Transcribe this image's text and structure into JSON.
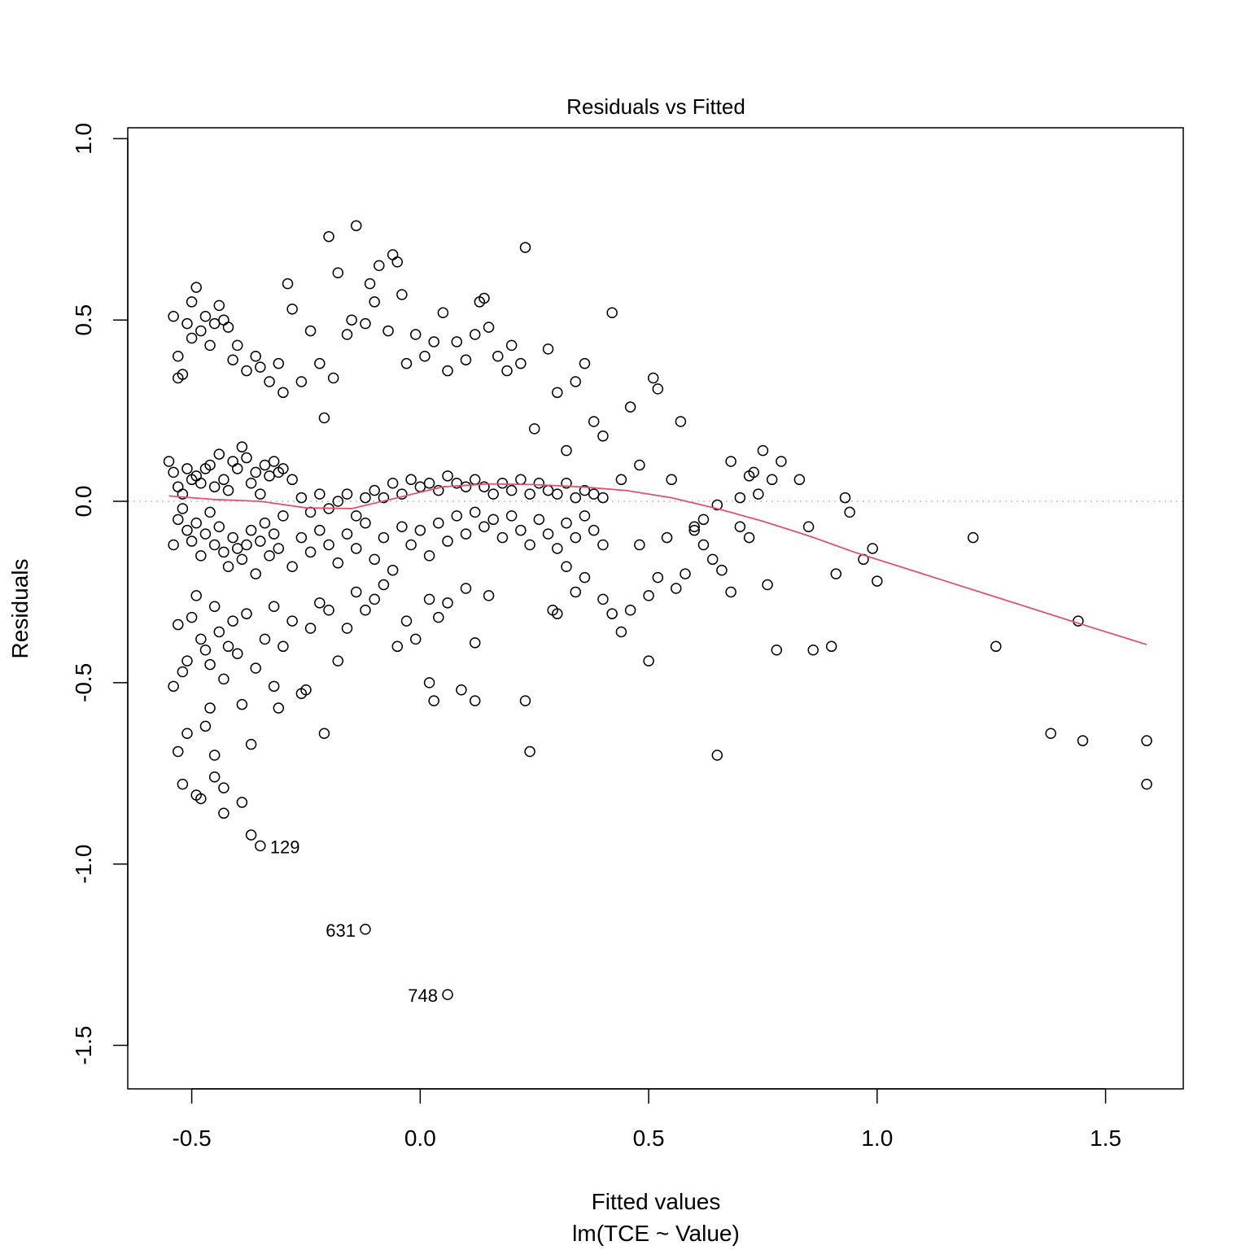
{
  "chart_data": {
    "type": "scatter",
    "title": "Residuals vs Fitted",
    "xlabel": "Fitted values",
    "subtitle": "lm(TCE ~ Value)",
    "ylabel": "Residuals",
    "xlim": [
      -0.64,
      1.67
    ],
    "ylim": [
      -1.62,
      1.03
    ],
    "xticks": [
      -0.5,
      0.0,
      0.5,
      1.0,
      1.5
    ],
    "xtick_labels": [
      "-0.5",
      "0.0",
      "0.5",
      "1.0",
      "1.5"
    ],
    "yticks": [
      -1.5,
      -1.0,
      -0.5,
      0.0,
      0.5,
      1.0
    ],
    "ytick_labels": [
      "-1.5",
      "-1.0",
      "-0.5",
      "0.0",
      "0.5",
      "1.0"
    ],
    "reference_line": {
      "y": 0,
      "style": "dotted",
      "color": "#bebebe"
    },
    "point_color": "#000000",
    "smooth_color": "#df536b",
    "points": [
      [
        -0.55,
        0.11
      ],
      [
        -0.54,
        0.51
      ],
      [
        -0.53,
        0.4
      ],
      [
        -0.53,
        0.34
      ],
      [
        -0.52,
        0.35
      ],
      [
        -0.51,
        0.49
      ],
      [
        -0.5,
        0.55
      ],
      [
        -0.5,
        0.45
      ],
      [
        -0.49,
        0.59
      ],
      [
        -0.48,
        0.47
      ],
      [
        -0.47,
        0.51
      ],
      [
        -0.46,
        0.43
      ],
      [
        -0.45,
        0.49
      ],
      [
        -0.44,
        0.54
      ],
      [
        -0.43,
        0.5
      ],
      [
        -0.42,
        0.48
      ],
      [
        -0.41,
        0.39
      ],
      [
        -0.4,
        0.43
      ],
      [
        -0.38,
        0.36
      ],
      [
        -0.36,
        0.4
      ],
      [
        -0.35,
        0.37
      ],
      [
        -0.33,
        0.33
      ],
      [
        -0.31,
        0.38
      ],
      [
        -0.3,
        0.3
      ],
      [
        -0.29,
        0.6
      ],
      [
        -0.28,
        0.53
      ],
      [
        -0.26,
        0.33
      ],
      [
        -0.24,
        0.47
      ],
      [
        -0.22,
        0.38
      ],
      [
        -0.21,
        0.23
      ],
      [
        -0.2,
        0.73
      ],
      [
        -0.19,
        0.34
      ],
      [
        -0.18,
        0.63
      ],
      [
        -0.16,
        0.46
      ],
      [
        -0.15,
        0.5
      ],
      [
        -0.14,
        0.76
      ],
      [
        -0.12,
        0.49
      ],
      [
        -0.11,
        0.6
      ],
      [
        -0.1,
        0.55
      ],
      [
        -0.09,
        0.65
      ],
      [
        -0.07,
        0.47
      ],
      [
        -0.06,
        0.68
      ],
      [
        -0.05,
        0.66
      ],
      [
        -0.04,
        0.57
      ],
      [
        -0.03,
        0.38
      ],
      [
        -0.01,
        0.46
      ],
      [
        0.01,
        0.4
      ],
      [
        0.03,
        0.44
      ],
      [
        0.05,
        0.52
      ],
      [
        0.06,
        0.36
      ],
      [
        0.08,
        0.44
      ],
      [
        0.1,
        0.39
      ],
      [
        0.12,
        0.46
      ],
      [
        0.13,
        0.55
      ],
      [
        0.14,
        0.56
      ],
      [
        0.15,
        0.48
      ],
      [
        0.17,
        0.4
      ],
      [
        0.19,
        0.36
      ],
      [
        0.2,
        0.43
      ],
      [
        0.22,
        0.38
      ],
      [
        0.23,
        0.7
      ],
      [
        0.25,
        0.2
      ],
      [
        0.28,
        0.42
      ],
      [
        0.3,
        0.3
      ],
      [
        0.32,
        0.14
      ],
      [
        0.34,
        0.33
      ],
      [
        0.36,
        0.38
      ],
      [
        0.38,
        0.22
      ],
      [
        0.4,
        0.18
      ],
      [
        0.42,
        0.52
      ],
      [
        0.44,
        0.06
      ],
      [
        0.46,
        0.26
      ],
      [
        0.48,
        0.1
      ],
      [
        0.51,
        0.34
      ],
      [
        0.52,
        0.31
      ],
      [
        0.55,
        0.06
      ],
      [
        0.57,
        0.22
      ],
      [
        0.6,
        -0.07
      ],
      [
        0.62,
        -0.05
      ],
      [
        0.65,
        -0.01
      ],
      [
        -0.54,
        0.08
      ],
      [
        -0.53,
        0.04
      ],
      [
        -0.52,
        0.02
      ],
      [
        -0.51,
        0.09
      ],
      [
        -0.5,
        0.06
      ],
      [
        -0.49,
        0.07
      ],
      [
        -0.48,
        0.05
      ],
      [
        -0.47,
        0.09
      ],
      [
        -0.46,
        0.1
      ],
      [
        -0.45,
        0.04
      ],
      [
        -0.44,
        0.13
      ],
      [
        -0.43,
        0.06
      ],
      [
        -0.42,
        0.03
      ],
      [
        -0.41,
        0.11
      ],
      [
        -0.4,
        0.09
      ],
      [
        -0.39,
        0.15
      ],
      [
        -0.38,
        0.12
      ],
      [
        -0.37,
        0.05
      ],
      [
        -0.36,
        0.08
      ],
      [
        -0.35,
        0.02
      ],
      [
        -0.34,
        0.1
      ],
      [
        -0.33,
        0.07
      ],
      [
        -0.32,
        0.11
      ],
      [
        -0.31,
        0.08
      ],
      [
        -0.3,
        0.09
      ],
      [
        -0.28,
        0.06
      ],
      [
        -0.26,
        0.01
      ],
      [
        -0.24,
        -0.03
      ],
      [
        -0.22,
        0.02
      ],
      [
        -0.2,
        -0.02
      ],
      [
        -0.18,
        0.0
      ],
      [
        -0.16,
        0.02
      ],
      [
        -0.14,
        -0.04
      ],
      [
        -0.12,
        0.01
      ],
      [
        -0.1,
        0.03
      ],
      [
        -0.08,
        0.01
      ],
      [
        -0.06,
        0.05
      ],
      [
        -0.04,
        0.02
      ],
      [
        -0.02,
        0.06
      ],
      [
        0.0,
        0.04
      ],
      [
        0.02,
        0.05
      ],
      [
        0.04,
        0.03
      ],
      [
        0.06,
        0.07
      ],
      [
        0.08,
        0.05
      ],
      [
        0.1,
        0.04
      ],
      [
        0.12,
        0.06
      ],
      [
        0.14,
        0.04
      ],
      [
        0.16,
        0.02
      ],
      [
        0.18,
        0.05
      ],
      [
        0.2,
        0.03
      ],
      [
        0.22,
        0.06
      ],
      [
        0.24,
        0.02
      ],
      [
        0.26,
        0.05
      ],
      [
        0.28,
        0.03
      ],
      [
        0.3,
        0.02
      ],
      [
        0.32,
        0.05
      ],
      [
        0.34,
        0.01
      ],
      [
        0.36,
        0.03
      ],
      [
        0.38,
        0.02
      ],
      [
        0.4,
        0.01
      ],
      [
        -0.54,
        -0.12
      ],
      [
        -0.53,
        -0.05
      ],
      [
        -0.52,
        -0.02
      ],
      [
        -0.51,
        -0.08
      ],
      [
        -0.5,
        -0.11
      ],
      [
        -0.49,
        -0.06
      ],
      [
        -0.48,
        -0.15
      ],
      [
        -0.47,
        -0.09
      ],
      [
        -0.46,
        -0.03
      ],
      [
        -0.45,
        -0.12
      ],
      [
        -0.44,
        -0.07
      ],
      [
        -0.43,
        -0.14
      ],
      [
        -0.42,
        -0.18
      ],
      [
        -0.41,
        -0.1
      ],
      [
        -0.4,
        -0.13
      ],
      [
        -0.39,
        -0.16
      ],
      [
        -0.38,
        -0.12
      ],
      [
        -0.37,
        -0.08
      ],
      [
        -0.36,
        -0.2
      ],
      [
        -0.35,
        -0.11
      ],
      [
        -0.34,
        -0.06
      ],
      [
        -0.33,
        -0.15
      ],
      [
        -0.32,
        -0.09
      ],
      [
        -0.31,
        -0.13
      ],
      [
        -0.3,
        -0.04
      ],
      [
        -0.28,
        -0.18
      ],
      [
        -0.26,
        -0.1
      ],
      [
        -0.24,
        -0.14
      ],
      [
        -0.22,
        -0.08
      ],
      [
        -0.2,
        -0.12
      ],
      [
        -0.18,
        -0.17
      ],
      [
        -0.16,
        -0.09
      ],
      [
        -0.14,
        -0.13
      ],
      [
        -0.12,
        -0.06
      ],
      [
        -0.1,
        -0.16
      ],
      [
        -0.08,
        -0.1
      ],
      [
        -0.06,
        -0.19
      ],
      [
        -0.04,
        -0.07
      ],
      [
        -0.02,
        -0.12
      ],
      [
        0.0,
        -0.08
      ],
      [
        0.02,
        -0.15
      ],
      [
        0.04,
        -0.06
      ],
      [
        0.06,
        -0.11
      ],
      [
        0.08,
        -0.04
      ],
      [
        0.1,
        -0.09
      ],
      [
        0.12,
        -0.03
      ],
      [
        0.14,
        -0.07
      ],
      [
        0.16,
        -0.05
      ],
      [
        0.18,
        -0.1
      ],
      [
        0.2,
        -0.04
      ],
      [
        0.22,
        -0.08
      ],
      [
        0.24,
        -0.12
      ],
      [
        0.26,
        -0.05
      ],
      [
        0.28,
        -0.09
      ],
      [
        0.3,
        -0.13
      ],
      [
        0.32,
        -0.06
      ],
      [
        0.34,
        -0.1
      ],
      [
        0.36,
        -0.04
      ],
      [
        0.38,
        -0.08
      ],
      [
        0.4,
        -0.12
      ],
      [
        -0.53,
        -0.34
      ],
      [
        -0.52,
        -0.47
      ],
      [
        -0.51,
        -0.44
      ],
      [
        -0.5,
        -0.32
      ],
      [
        -0.49,
        -0.26
      ],
      [
        -0.48,
        -0.38
      ],
      [
        -0.47,
        -0.41
      ],
      [
        -0.46,
        -0.45
      ],
      [
        -0.45,
        -0.29
      ],
      [
        -0.44,
        -0.36
      ],
      [
        -0.43,
        -0.49
      ],
      [
        -0.42,
        -0.4
      ],
      [
        -0.41,
        -0.33
      ],
      [
        -0.4,
        -0.42
      ],
      [
        -0.38,
        -0.31
      ],
      [
        -0.36,
        -0.46
      ],
      [
        -0.34,
        -0.38
      ],
      [
        -0.32,
        -0.29
      ],
      [
        -0.3,
        -0.4
      ],
      [
        -0.28,
        -0.33
      ],
      [
        -0.26,
        -0.53
      ],
      [
        -0.25,
        -0.52
      ],
      [
        -0.24,
        -0.35
      ],
      [
        -0.22,
        -0.28
      ],
      [
        -0.2,
        -0.3
      ],
      [
        -0.18,
        -0.44
      ],
      [
        -0.16,
        -0.35
      ],
      [
        -0.14,
        -0.25
      ],
      [
        -0.12,
        -0.3
      ],
      [
        -0.1,
        -0.27
      ],
      [
        -0.08,
        -0.23
      ],
      [
        -0.05,
        -0.4
      ],
      [
        -0.03,
        -0.33
      ],
      [
        -0.01,
        -0.38
      ],
      [
        0.02,
        -0.27
      ],
      [
        0.04,
        -0.32
      ],
      [
        0.06,
        -0.28
      ],
      [
        0.1,
        -0.24
      ],
      [
        0.12,
        -0.39
      ],
      [
        0.15,
        -0.26
      ],
      [
        -0.54,
        -0.51
      ],
      [
        -0.53,
        -0.69
      ],
      [
        -0.52,
        -0.78
      ],
      [
        -0.51,
        -0.64
      ],
      [
        -0.49,
        -0.81
      ],
      [
        -0.48,
        -0.82
      ],
      [
        -0.47,
        -0.62
      ],
      [
        -0.46,
        -0.57
      ],
      [
        -0.45,
        -0.7
      ],
      [
        -0.45,
        -0.76
      ],
      [
        -0.43,
        -0.79
      ],
      [
        -0.43,
        -0.86
      ],
      [
        -0.39,
        -0.56
      ],
      [
        -0.39,
        -0.83
      ],
      [
        -0.37,
        -0.92
      ],
      [
        -0.37,
        -0.67
      ],
      [
        -0.32,
        -0.51
      ],
      [
        -0.31,
        -0.57
      ],
      [
        -0.21,
        -0.64
      ],
      [
        0.02,
        -0.5
      ],
      [
        0.03,
        -0.55
      ],
      [
        0.09,
        -0.52
      ],
      [
        0.12,
        -0.55
      ],
      [
        0.23,
        -0.55
      ],
      [
        0.24,
        -0.69
      ],
      [
        0.29,
        -0.3
      ],
      [
        0.3,
        -0.31
      ],
      [
        0.32,
        -0.18
      ],
      [
        0.34,
        -0.25
      ],
      [
        0.36,
        -0.21
      ],
      [
        0.4,
        -0.27
      ],
      [
        0.42,
        -0.31
      ],
      [
        0.44,
        -0.36
      ],
      [
        0.46,
        -0.3
      ],
      [
        0.48,
        -0.12
      ],
      [
        0.5,
        -0.26
      ],
      [
        0.5,
        -0.44
      ],
      [
        0.52,
        -0.21
      ],
      [
        0.54,
        -0.1
      ],
      [
        0.56,
        -0.24
      ],
      [
        0.58,
        -0.2
      ],
      [
        0.6,
        -0.08
      ],
      [
        0.62,
        -0.12
      ],
      [
        0.64,
        -0.16
      ],
      [
        0.66,
        -0.19
      ],
      [
        0.68,
        -0.25
      ],
      [
        0.7,
        -0.07
      ],
      [
        0.72,
        -0.1
      ],
      [
        0.74,
        0.02
      ],
      [
        0.76,
        -0.23
      ],
      [
        0.68,
        0.11
      ],
      [
        0.7,
        0.01
      ],
      [
        0.72,
        0.07
      ],
      [
        0.73,
        0.08
      ],
      [
        0.75,
        0.14
      ],
      [
        0.77,
        0.06
      ],
      [
        0.79,
        0.11
      ],
      [
        0.83,
        0.06
      ],
      [
        0.85,
        -0.07
      ],
      [
        0.78,
        -0.41
      ],
      [
        0.86,
        -0.41
      ],
      [
        0.9,
        -0.4
      ],
      [
        0.93,
        0.01
      ],
      [
        0.94,
        -0.03
      ],
      [
        0.91,
        -0.2
      ],
      [
        0.97,
        -0.16
      ],
      [
        0.99,
        -0.13
      ],
      [
        1.0,
        -0.22
      ],
      [
        1.21,
        -0.1
      ],
      [
        1.26,
        -0.4
      ],
      [
        1.38,
        -0.64
      ],
      [
        1.44,
        -0.33
      ],
      [
        1.45,
        -0.66
      ],
      [
        1.59,
        -0.66
      ],
      [
        1.59,
        -0.78
      ],
      [
        0.65,
        -0.7
      ],
      [
        -0.35,
        -0.95
      ],
      [
        -0.12,
        -1.18
      ],
      [
        0.06,
        -1.36
      ]
    ],
    "smooth_line": {
      "x": [
        -0.55,
        -0.45,
        -0.35,
        -0.25,
        -0.15,
        -0.05,
        0.05,
        0.15,
        0.25,
        0.35,
        0.45,
        0.55,
        0.65,
        0.75,
        0.85,
        0.95,
        1.05,
        1.15,
        1.25,
        1.35,
        1.45,
        1.59
      ],
      "y": [
        0.015,
        0.005,
        0.0,
        -0.018,
        -0.02,
        0.01,
        0.04,
        0.048,
        0.046,
        0.04,
        0.03,
        0.01,
        -0.02,
        -0.055,
        -0.095,
        -0.14,
        -0.18,
        -0.22,
        -0.26,
        -0.3,
        -0.34,
        -0.395
      ]
    },
    "annotations": [
      {
        "text": "129",
        "x": -0.35,
        "y": -0.95,
        "anchor": "right-of"
      },
      {
        "text": "631",
        "x": -0.12,
        "y": -1.18,
        "anchor": "left-of"
      },
      {
        "text": "748",
        "x": 0.06,
        "y": -1.36,
        "anchor": "left-of"
      }
    ]
  }
}
